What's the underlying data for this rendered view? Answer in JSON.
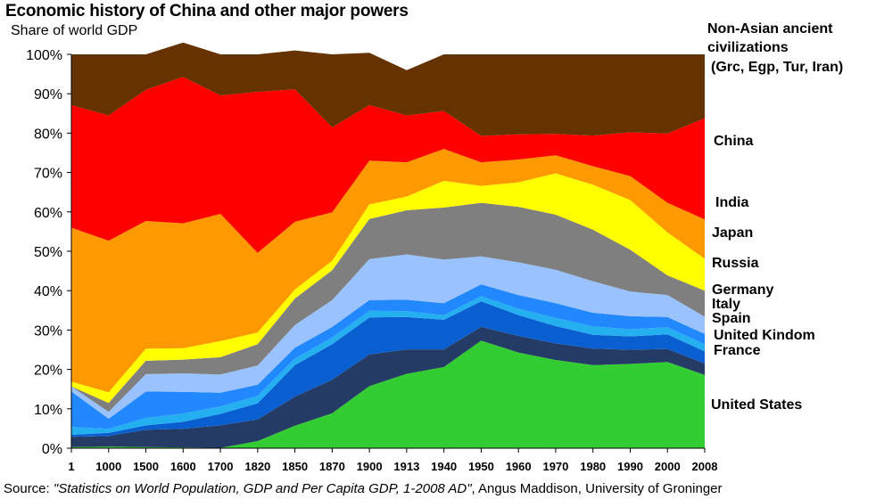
{
  "title": "Economic history  of China and other major powers",
  "subtitle": "Share of world GDP",
  "source": {
    "prefix": "Source: ",
    "title": "\"Statistics on World Population, GDP and Per Capita GDP, 1-2008 AD\"",
    "suffix": ", Angus Maddison, University of Groninger"
  },
  "chart_data": {
    "type": "area",
    "stacked": true,
    "ylim": [
      0,
      100
    ],
    "y_ticks": [
      "0%",
      "10%",
      "20%",
      "30%",
      "40%",
      "50%",
      "60%",
      "70%",
      "80%",
      "90%",
      "100%"
    ],
    "categories": [
      "1",
      "1000",
      "1500",
      "1600",
      "1700",
      "1820",
      "1850",
      "1870",
      "1900",
      "1913",
      "1940",
      "1950",
      "1960",
      "1970",
      "1980",
      "1990",
      "2000",
      "2008"
    ],
    "series": [
      {
        "name": "United States",
        "color": "#33cc33",
        "values": [
          0.3,
          0.4,
          0.3,
          0.2,
          0.1,
          1.8,
          5.7,
          8.9,
          15.8,
          18.9,
          20.6,
          27.3,
          24.3,
          22.4,
          21.1,
          21.4,
          21.9,
          18.6
        ]
      },
      {
        "name": "France",
        "color": "#243b66",
        "values": [
          2.6,
          2.7,
          4.4,
          4.7,
          5.7,
          5.5,
          7.4,
          8.5,
          8.0,
          6.2,
          4.5,
          3.5,
          4.2,
          4.2,
          4.2,
          3.6,
          3.3,
          2.9
        ]
      },
      {
        "name": "United Kindom",
        "color": "#0a5fd0",
        "values": [
          0.5,
          0.8,
          1.1,
          1.8,
          2.9,
          4.1,
          8.0,
          9.0,
          9.4,
          8.2,
          7.5,
          6.5,
          5.3,
          4.4,
          3.5,
          3.4,
          3.7,
          3.1
        ]
      },
      {
        "name": "Spain",
        "color": "#23aff0",
        "values": [
          2.0,
          1.0,
          1.9,
          2.1,
          1.9,
          1.9,
          1.7,
          1.7,
          1.7,
          1.5,
          1.2,
          1.3,
          1.6,
          2.1,
          2.1,
          1.8,
          1.8,
          1.8
        ]
      },
      {
        "name": "Italy",
        "color": "#2288ff",
        "values": [
          9.0,
          2.6,
          6.7,
          5.5,
          3.5,
          2.8,
          2.7,
          2.7,
          2.7,
          2.9,
          3.0,
          3.0,
          3.5,
          3.7,
          3.5,
          3.3,
          2.6,
          2.6
        ]
      },
      {
        "name": "Germany",
        "color": "#99c2ff",
        "values": [
          1.3,
          1.7,
          4.4,
          4.7,
          4.6,
          4.9,
          5.8,
          6.8,
          10.4,
          11.5,
          11.1,
          7.1,
          8.3,
          8.5,
          8.0,
          6.3,
          5.6,
          4.4
        ]
      },
      {
        "name": "Russia",
        "color": "#7f7f7f",
        "values": [
          0.0,
          2.3,
          3.4,
          3.5,
          4.4,
          5.4,
          6.7,
          7.6,
          10.2,
          11.2,
          13.2,
          13.6,
          14.1,
          14.0,
          13.1,
          10.6,
          5.0,
          6.6
        ]
      },
      {
        "name": "Japan",
        "color": "#ffff00",
        "values": [
          1.2,
          2.7,
          3.1,
          2.9,
          4.1,
          3.0,
          2.3,
          2.4,
          3.7,
          3.5,
          6.8,
          4.3,
          6.2,
          10.5,
          11.4,
          12.6,
          10.9,
          8.1
        ]
      },
      {
        "name": "India",
        "color": "#ff9900",
        "values": [
          39.1,
          38.5,
          32.4,
          31.7,
          32.3,
          20.2,
          17.2,
          12.3,
          11.1,
          8.7,
          8.1,
          6.0,
          5.8,
          4.6,
          4.7,
          6.1,
          7.5,
          10.0
        ]
      },
      {
        "name": "China",
        "color": "#ff0000",
        "values": [
          31.1,
          31.8,
          33.3,
          37.2,
          30.1,
          40.9,
          33.6,
          21.6,
          14.1,
          11.9,
          9.6,
          6.7,
          6.4,
          5.4,
          7.8,
          11.1,
          17.6,
          25.7
        ]
      },
      {
        "name": "Non-Asian ancient civilizations (Grc, Egp, Tur, Iran)",
        "color": "#663300",
        "values": [
          12.9,
          15.5,
          9.0,
          8.7,
          10.4,
          9.5,
          9.9,
          18.5,
          13.3,
          11.5,
          14.4,
          20.7,
          20.3,
          20.2,
          20.6,
          19.8,
          20.1,
          16.2
        ]
      }
    ],
    "labels": [
      {
        "name": "non-asian",
        "lines": [
          "Non-Asian ancient",
          "civilizations",
          "(Grc, Egp, Tur, Iran)"
        ]
      },
      {
        "name": "china",
        "lines": [
          "China"
        ]
      },
      {
        "name": "india",
        "lines": [
          "India"
        ]
      },
      {
        "name": "japan",
        "lines": [
          "Japan"
        ]
      },
      {
        "name": "russia",
        "lines": [
          "Russia"
        ]
      },
      {
        "name": "germany",
        "lines": [
          "Germany"
        ]
      },
      {
        "name": "italy",
        "lines": [
          "Italy"
        ]
      },
      {
        "name": "spain",
        "lines": [
          "Spain"
        ]
      },
      {
        "name": "uk",
        "lines": [
          "United Kindom"
        ]
      },
      {
        "name": "france",
        "lines": [
          "France"
        ]
      },
      {
        "name": "us",
        "lines": [
          "United States"
        ]
      }
    ]
  }
}
